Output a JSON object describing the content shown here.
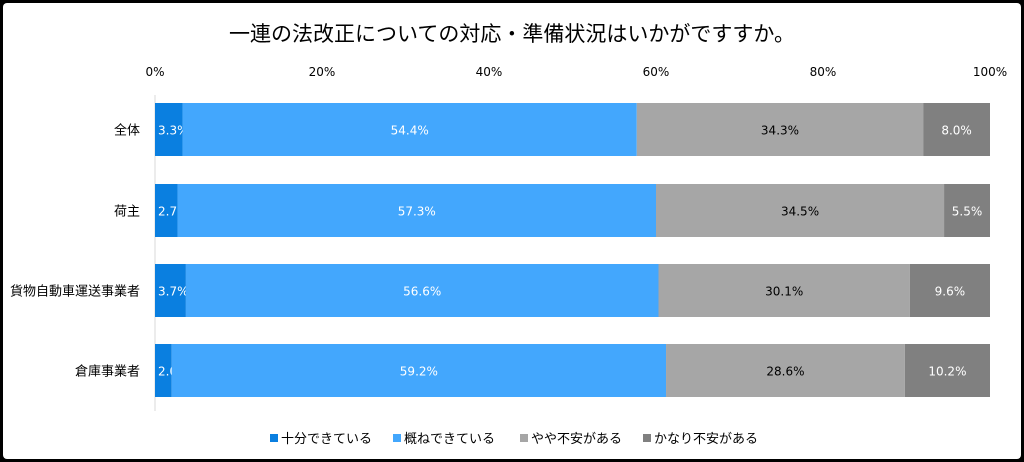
{
  "chart_data": {
    "type": "bar",
    "orientation": "horizontal",
    "stacked": true,
    "title": "一連の法改正についての対応・準備状況はいかがですすか。",
    "categories": [
      "全体",
      "荷主",
      "貨物自動車運送事業者",
      "倉庫事業者"
    ],
    "series": [
      {
        "name": "十分できている",
        "color": "#0a7fe0",
        "label_color": "#ffffff",
        "values": [
          3.3,
          2.7,
          3.7,
          2.0
        ]
      },
      {
        "name": "概ねできている",
        "color": "#43a7fd",
        "label_color": "#ffffff",
        "values": [
          54.4,
          57.3,
          56.6,
          59.2
        ]
      },
      {
        "name": "やや不安がある",
        "color": "#a6a6a6",
        "label_color": "#000000",
        "values": [
          34.3,
          34.5,
          30.1,
          28.6
        ]
      },
      {
        "name": "かなり不安がある",
        "color": "#808080",
        "label_color": "#ffffff",
        "values": [
          8.0,
          5.5,
          9.6,
          10.2
        ]
      }
    ],
    "xlim": [
      0,
      100
    ],
    "xticks": [
      "0%",
      "20%",
      "40%",
      "60%",
      "80%",
      "100%"
    ],
    "axis_position": "top",
    "grid": false,
    "legend": "bottom"
  }
}
